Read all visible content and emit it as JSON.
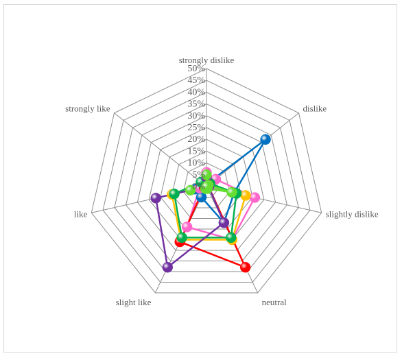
{
  "chart_data": {
    "type": "radar",
    "categories": [
      "strongly dislike",
      "dislike",
      "slightly dislike",
      "neutral",
      "slight like",
      "like",
      "strongly like"
    ],
    "r_ticks": [
      "0%",
      "5%",
      "10%",
      "15%",
      "20%",
      "25%",
      "30%",
      "35%",
      "40%",
      "45%",
      "50%"
    ],
    "rlim": [
      0,
      50
    ],
    "grid": true,
    "legend": "none",
    "series": [
      {
        "color": "#0070C0",
        "values": [
          1,
          32,
          12,
          17,
          5,
          5,
          0
        ]
      },
      {
        "color": "#FF66CC",
        "values": [
          6,
          5,
          21,
          25,
          19,
          3,
          0
        ]
      },
      {
        "color": "#FFC000",
        "values": [
          1,
          1,
          17,
          25,
          25,
          15,
          0
        ]
      },
      {
        "color": "#FF0000",
        "values": [
          1,
          1,
          1,
          38,
          26,
          1,
          0
        ]
      },
      {
        "color": "#00B050",
        "values": [
          1,
          2,
          13,
          24,
          24,
          14,
          3
        ]
      },
      {
        "color": "#7030A0",
        "values": [
          4,
          1,
          1,
          17,
          38,
          22,
          0
        ]
      },
      {
        "color": "#66DD33",
        "values": [
          5,
          1,
          11,
          1,
          1,
          7,
          0
        ]
      }
    ]
  }
}
